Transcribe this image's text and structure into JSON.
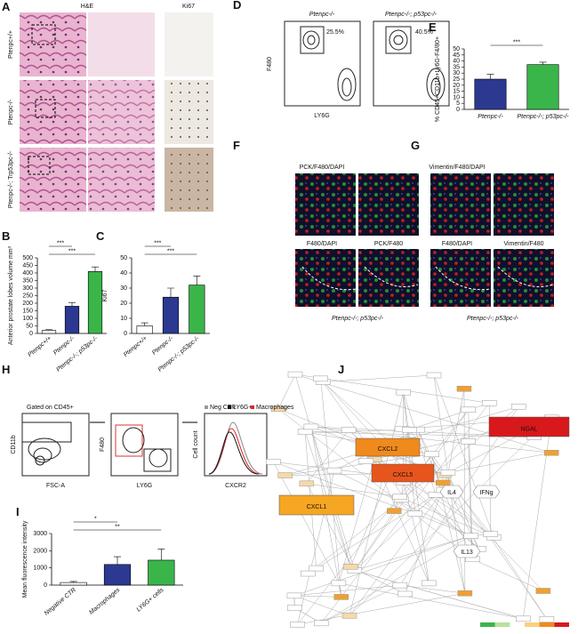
{
  "figure": {
    "A": {
      "label": "A",
      "columns": [
        "H&E",
        "Ki67"
      ],
      "rows": [
        "Ptenpc+/+",
        "Ptenpc-/-",
        "Ptenpc-/-; Trp53pc-/-"
      ]
    },
    "D": {
      "label": "D",
      "plots": [
        {
          "title": "Ptenpc-/-",
          "gate": "25.5%"
        },
        {
          "title": "Ptenpc-/-; p53pc-/-",
          "gate": "40.5%"
        }
      ],
      "ylabel": "F480",
      "xlabel": "LY6G"
    },
    "F": {
      "label": "F",
      "captions": [
        "PCK/F480/DAPI",
        "F480/DAPI",
        "PCK/F480"
      ],
      "footer": "Ptenpc-/-; p53pc-/-"
    },
    "G": {
      "label": "G",
      "captions": [
        "Vimentin/F480/DAPI",
        "F480/DAPI",
        "Vimentin/F480"
      ],
      "footer": "Ptenpc-/-; p53pc-/-"
    },
    "H": {
      "label": "H",
      "gate": "Gated on CD45+",
      "plots": [
        {
          "ylabel": "CD11b",
          "xlabel": "FSC-A"
        },
        {
          "ylabel": "F480",
          "xlabel": "LY6G"
        },
        {
          "ylabel": "Cell count",
          "xlabel": "CXCR2"
        }
      ],
      "legend": [
        "Neg CTR",
        "LY6G+",
        "Macrophages"
      ]
    },
    "J": {
      "label": "J",
      "nodes": [
        "NGAL",
        "CXCL2",
        "CXCL5",
        "CXCL1",
        "IL4",
        "IFNg",
        "IL13"
      ]
    }
  },
  "chart_data": [
    {
      "type": "bar",
      "label": "B",
      "ylabel": "Anterior prostate lobes volume mm³",
      "categories": [
        "Ptenpc+/+",
        "Ptenpc-/-",
        "Ptenpc-/-; p53pc-/-"
      ],
      "values": [
        20,
        180,
        410
      ],
      "errors": [
        5,
        25,
        30
      ],
      "colors": [
        "#ffffff",
        "#2b3990",
        "#3ab54a"
      ],
      "ylim": [
        0,
        500
      ],
      "yticks": [
        0,
        50,
        100,
        150,
        200,
        250,
        300,
        350,
        400,
        450,
        500
      ],
      "annotations": [
        "***",
        "***"
      ]
    },
    {
      "type": "bar",
      "label": "C",
      "ylabel": "Ki67",
      "categories": [
        "Ptenpc+/+",
        "Ptenpc-/-",
        "Ptenpc-/-; p53pc-/-"
      ],
      "values": [
        5,
        24,
        32
      ],
      "errors": [
        2,
        6,
        6
      ],
      "colors": [
        "#ffffff",
        "#2b3990",
        "#3ab54a"
      ],
      "ylim": [
        0,
        50
      ],
      "yticks": [
        0,
        10,
        20,
        30,
        40,
        50
      ],
      "annotations": [
        "***",
        "***"
      ]
    },
    {
      "type": "bar",
      "label": "E",
      "ylabel": "% CD45+CD11b+Ly6G-F4/80+",
      "categories": [
        "Ptenpc-/-",
        "Ptenpc-/-; p53pc-/-"
      ],
      "values": [
        25,
        37
      ],
      "errors": [
        4,
        2
      ],
      "colors": [
        "#2b3990",
        "#3ab54a"
      ],
      "ylim": [
        0,
        50
      ],
      "yticks": [
        0,
        5,
        10,
        15,
        20,
        25,
        30,
        35,
        40,
        45,
        50
      ],
      "annotations": [
        "***"
      ]
    },
    {
      "type": "bar",
      "label": "I",
      "ylabel": "Mean fluorescence intensity",
      "categories": [
        "Negative CTR",
        "Macrophages",
        "LY6G+ cells"
      ],
      "values": [
        150,
        1200,
        1450
      ],
      "errors": [
        60,
        450,
        650
      ],
      "colors": [
        "#ffffff",
        "#2b3990",
        "#3ab54a"
      ],
      "ylim": [
        0,
        3000
      ],
      "yticks": [
        0,
        1000,
        2000,
        3000
      ],
      "annotations": [
        "*",
        "**"
      ]
    }
  ]
}
